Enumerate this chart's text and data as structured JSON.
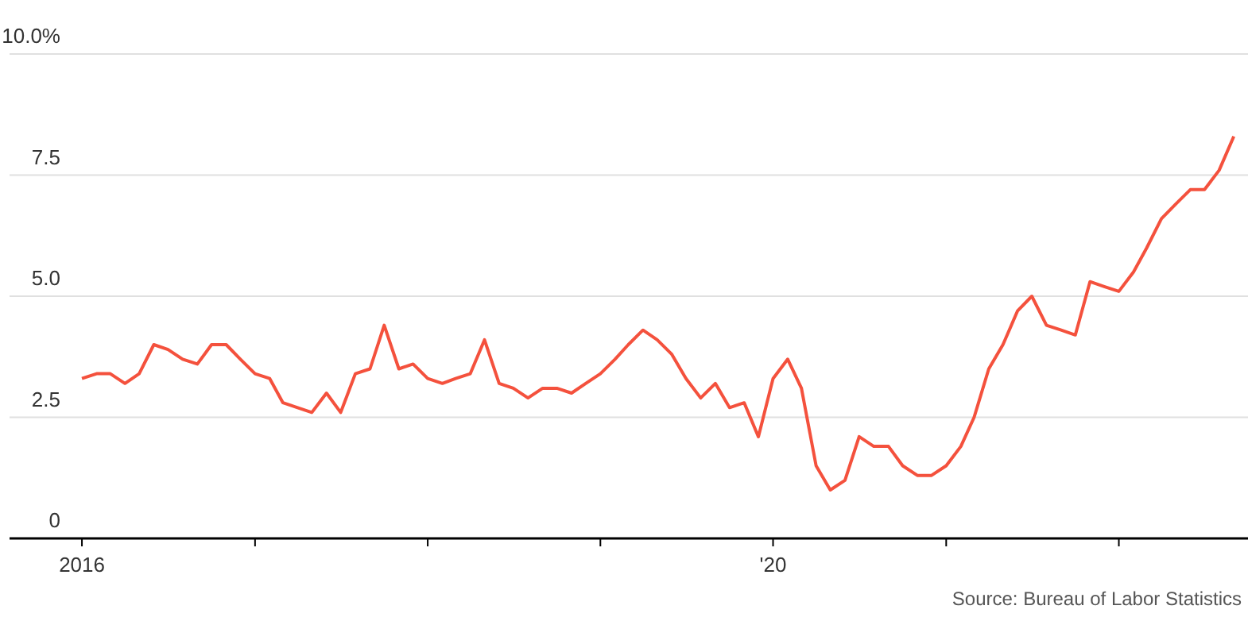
{
  "chart_data": {
    "type": "line",
    "x": [
      "2016-01",
      "2016-02",
      "2016-03",
      "2016-04",
      "2016-05",
      "2016-06",
      "2016-07",
      "2016-08",
      "2016-09",
      "2016-10",
      "2016-11",
      "2016-12",
      "2017-01",
      "2017-02",
      "2017-03",
      "2017-04",
      "2017-05",
      "2017-06",
      "2017-07",
      "2017-08",
      "2017-09",
      "2017-10",
      "2017-11",
      "2017-12",
      "2018-01",
      "2018-02",
      "2018-03",
      "2018-04",
      "2018-05",
      "2018-06",
      "2018-07",
      "2018-08",
      "2018-09",
      "2018-10",
      "2018-11",
      "2018-12",
      "2019-01",
      "2019-02",
      "2019-03",
      "2019-04",
      "2019-05",
      "2019-06",
      "2019-07",
      "2019-08",
      "2019-09",
      "2019-10",
      "2019-11",
      "2019-12",
      "2020-01",
      "2020-02",
      "2020-03",
      "2020-04",
      "2020-05",
      "2020-06",
      "2020-07",
      "2020-08",
      "2020-09",
      "2020-10",
      "2020-11",
      "2020-12",
      "2021-01",
      "2021-02",
      "2021-03",
      "2021-04",
      "2021-05",
      "2021-06",
      "2021-07",
      "2021-08",
      "2021-09",
      "2021-10",
      "2021-11",
      "2021-12",
      "2022-01",
      "2022-02",
      "2022-03",
      "2022-04",
      "2022-05",
      "2022-06",
      "2022-07",
      "2022-08",
      "2022-09"
    ],
    "series": [
      {
        "color": "#f4513d",
        "values": [
          3.3,
          3.4,
          3.4,
          3.2,
          3.4,
          4.0,
          3.9,
          3.7,
          3.6,
          4.0,
          4.0,
          3.7,
          3.4,
          3.3,
          2.8,
          2.7,
          2.6,
          3.0,
          2.6,
          3.4,
          3.5,
          4.4,
          3.5,
          3.6,
          3.3,
          3.2,
          3.3,
          3.4,
          4.1,
          3.2,
          3.1,
          2.9,
          3.1,
          3.1,
          3.0,
          3.2,
          3.4,
          3.7,
          4.0,
          4.3,
          4.1,
          3.8,
          3.3,
          2.9,
          3.2,
          2.7,
          2.8,
          2.1,
          3.3,
          3.7,
          3.1,
          1.5,
          1.0,
          1.2,
          2.1,
          1.9,
          1.9,
          1.5,
          1.3,
          1.3,
          1.5,
          1.9,
          2.5,
          3.5,
          4.0,
          4.7,
          5.0,
          4.4,
          4.3,
          4.2,
          5.3,
          5.2,
          5.1,
          5.5,
          6.0,
          6.6,
          6.9,
          7.2,
          7.2,
          7.6,
          8.3
        ]
      }
    ],
    "xlim": [
      "2015-08",
      "2022-10"
    ],
    "xticks": [
      {
        "value": "2016-01",
        "label": "2016"
      },
      {
        "value": "2017-01",
        "label": null
      },
      {
        "value": "2018-01",
        "label": null
      },
      {
        "value": "2019-01",
        "label": null
      },
      {
        "value": "2020-01",
        "label": "'20"
      },
      {
        "value": "2021-01",
        "label": null
      },
      {
        "value": "2022-01",
        "label": null
      }
    ],
    "ylim": [
      0,
      10
    ],
    "yticks": [
      {
        "value": 0,
        "label": "0"
      },
      {
        "value": 2.5,
        "label": "2.5"
      },
      {
        "value": 5,
        "label": "5.0"
      },
      {
        "value": 7.5,
        "label": "7.5"
      },
      {
        "value": 10,
        "label": "10.0%"
      }
    ],
    "grid": "y",
    "legend": false,
    "marker": "none",
    "line_style": "solid",
    "annotations": [
      "Source: Bureau of Labor Statistics"
    ]
  }
}
